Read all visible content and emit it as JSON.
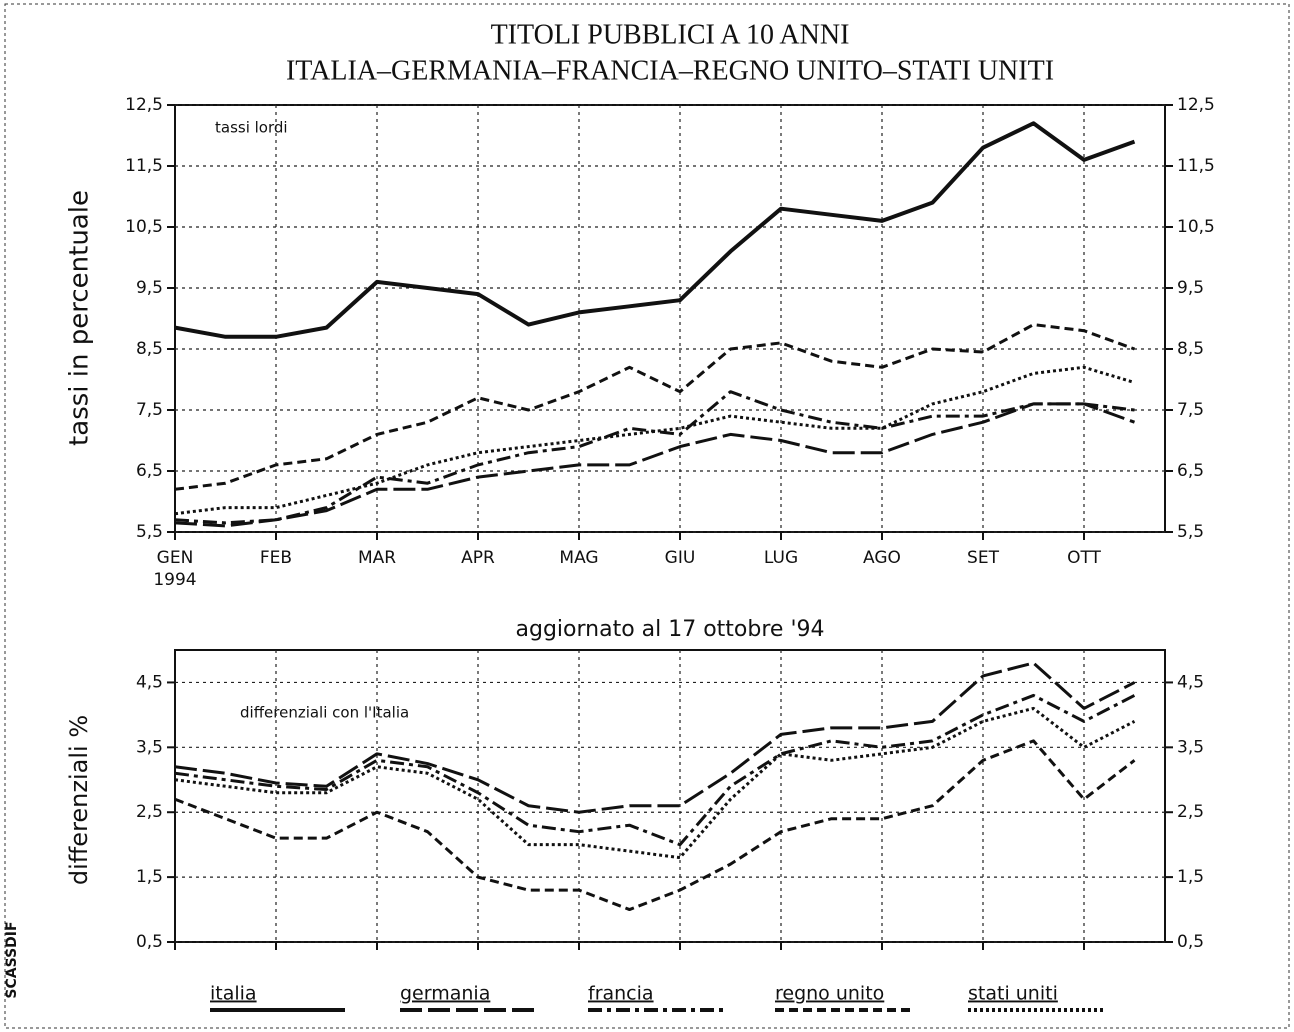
{
  "chart_data": [
    {
      "type": "line",
      "title": "TITOLI PUBBLICI A 10 ANNI",
      "subtitle": "ITALIA–GERMANIA–FRANCIA–REGNO UNITO–STATI UNITI",
      "annotation": "tassi lordi",
      "ylabel": "tassi in percentuale",
      "categories": [
        "GEN 1994",
        null,
        "FEB",
        null,
        "MAR",
        null,
        "APR",
        null,
        "MAG",
        null,
        "GIU",
        null,
        "LUG",
        null,
        "AGO",
        null,
        "SET",
        null,
        "OTT",
        null
      ],
      "ylim": [
        5.5,
        12.5
      ],
      "yticks": [
        {
          "value": 5.5,
          "label": "5,5"
        },
        {
          "value": 6.5,
          "label": "6,5"
        },
        {
          "value": 7.5,
          "label": "7,5"
        },
        {
          "value": 8.5,
          "label": "8,5"
        },
        {
          "value": 9.5,
          "label": "9,5"
        },
        {
          "value": 10.5,
          "label": "10,5"
        },
        {
          "value": 11.5,
          "label": "11,5"
        },
        {
          "value": 12.5,
          "label": "12,5"
        }
      ],
      "grid": true,
      "series": [
        {
          "name": "italia",
          "color": "#111111",
          "style": "solid",
          "values": [
            8.85,
            8.7,
            8.7,
            8.85,
            9.6,
            9.5,
            9.4,
            8.9,
            9.1,
            9.2,
            9.3,
            10.1,
            10.8,
            10.7,
            10.6,
            10.9,
            11.8,
            12.2,
            11.6,
            11.9
          ]
        },
        {
          "name": "germania",
          "color": "#111111",
          "style": "longdash",
          "values": [
            5.65,
            5.6,
            5.7,
            5.85,
            6.2,
            6.2,
            6.4,
            6.5,
            6.6,
            6.6,
            6.9,
            7.1,
            7.0,
            6.8,
            6.8,
            7.1,
            7.3,
            7.6,
            7.6,
            7.3
          ]
        },
        {
          "name": "francia",
          "color": "#111111",
          "style": "dashdot",
          "values": [
            5.7,
            5.65,
            5.7,
            5.9,
            6.4,
            6.3,
            6.6,
            6.8,
            6.9,
            7.2,
            7.1,
            7.8,
            7.5,
            7.3,
            7.2,
            7.4,
            7.4,
            7.6,
            7.6,
            7.5
          ]
        },
        {
          "name": "regno unito",
          "color": "#111111",
          "style": "dashed",
          "values": [
            6.2,
            6.3,
            6.6,
            6.7,
            7.1,
            7.3,
            7.7,
            7.5,
            7.8,
            8.2,
            7.8,
            8.5,
            8.6,
            8.3,
            8.2,
            8.5,
            8.45,
            8.9,
            8.8,
            8.5
          ]
        },
        {
          "name": "stati uniti",
          "color": "#111111",
          "style": "dotted",
          "values": [
            5.8,
            5.9,
            5.9,
            6.1,
            6.3,
            6.6,
            6.8,
            6.9,
            7.0,
            7.1,
            7.2,
            7.4,
            7.3,
            7.2,
            7.2,
            7.6,
            7.8,
            8.1,
            8.2,
            7.95
          ]
        }
      ]
    },
    {
      "type": "line",
      "title": "aggiornato al 17 ottobre '94",
      "annotation": "differenziali con l'Italia",
      "ylabel": "differenziali %",
      "ylim": [
        0.5,
        5
      ],
      "yticks": [
        {
          "value": 0.5,
          "label": "0,5"
        },
        {
          "value": 1.5,
          "label": "1,5"
        },
        {
          "value": 2.5,
          "label": "2,5"
        },
        {
          "value": 3.5,
          "label": "3,5"
        },
        {
          "value": 4.5,
          "label": "4,5"
        }
      ],
      "grid": true,
      "series": [
        {
          "name": "germania",
          "color": "#111111",
          "style": "longdash",
          "values": [
            3.2,
            3.1,
            2.95,
            2.9,
            3.4,
            3.25,
            3.0,
            2.6,
            2.5,
            2.6,
            2.6,
            3.1,
            3.7,
            3.8,
            3.8,
            3.9,
            4.6,
            4.8,
            4.1,
            4.5
          ]
        },
        {
          "name": "francia",
          "color": "#111111",
          "style": "dashdot",
          "values": [
            3.1,
            3.0,
            2.9,
            2.85,
            3.3,
            3.2,
            2.8,
            2.3,
            2.2,
            2.3,
            2.0,
            2.9,
            3.4,
            3.6,
            3.5,
            3.6,
            4.0,
            4.3,
            3.9,
            4.3
          ]
        },
        {
          "name": "regno unito",
          "color": "#111111",
          "style": "dashed",
          "values": [
            2.7,
            2.4,
            2.1,
            2.1,
            2.5,
            2.2,
            1.5,
            1.3,
            1.3,
            1.0,
            1.3,
            1.7,
            2.2,
            2.4,
            2.4,
            2.6,
            3.3,
            3.6,
            2.7,
            3.3
          ]
        },
        {
          "name": "stati uniti",
          "color": "#111111",
          "style": "dotted",
          "values": [
            3.0,
            2.9,
            2.8,
            2.8,
            3.2,
            3.1,
            2.7,
            2.0,
            2.0,
            1.9,
            1.8,
            2.7,
            3.4,
            3.3,
            3.4,
            3.5,
            3.9,
            4.1,
            3.5,
            3.9
          ]
        }
      ]
    }
  ],
  "side_label": "SCASSDIF"
}
